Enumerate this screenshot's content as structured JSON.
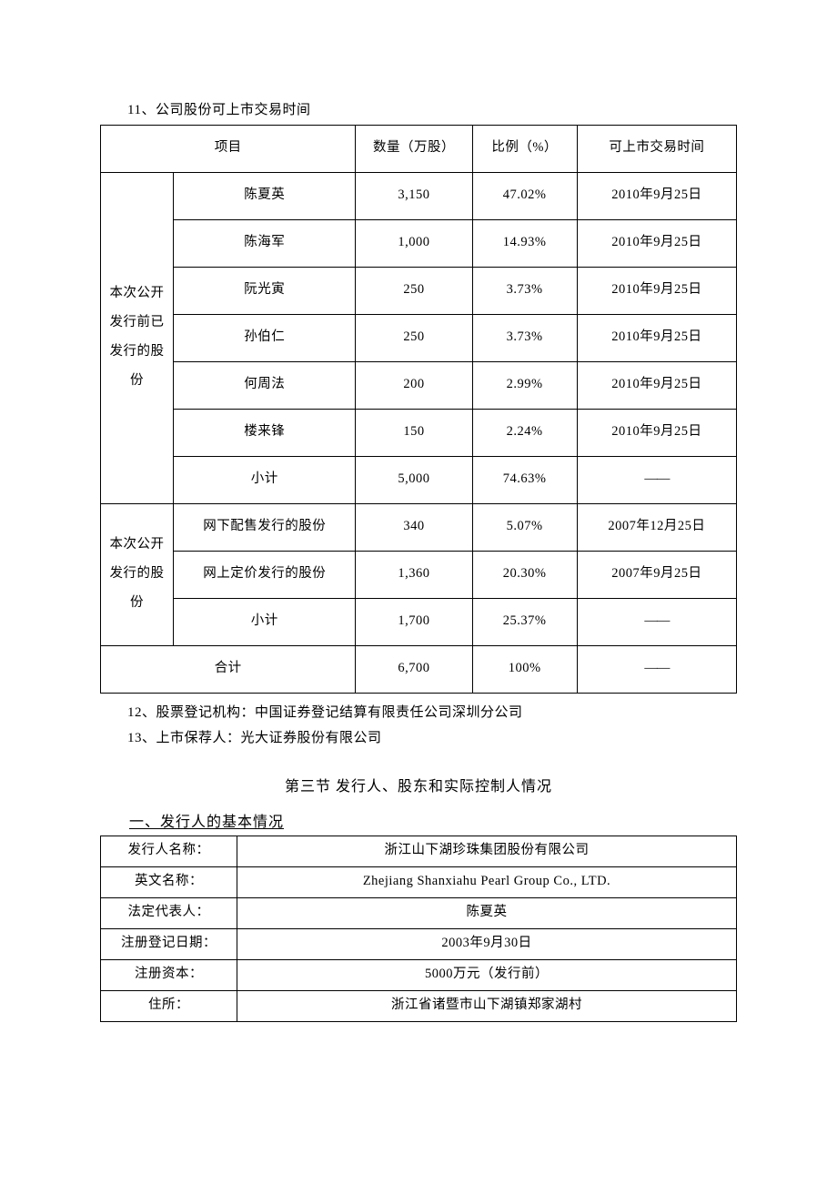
{
  "heading_11": "11、公司股份可上市交易时间",
  "table_main": {
    "columns": [
      "项目",
      "数量（万股）",
      "比例（%）",
      "可上市交易时间"
    ],
    "group1_label": "本次公开发行前已发行的股份",
    "group1_rows": [
      {
        "name": "陈夏英",
        "qty": "3,150",
        "pct": "47.02%",
        "date": "2010年9月25日"
      },
      {
        "name": "陈海军",
        "qty": "1,000",
        "pct": "14.93%",
        "date": "2010年9月25日"
      },
      {
        "name": "阮光寅",
        "qty": "250",
        "pct": "3.73%",
        "date": "2010年9月25日"
      },
      {
        "name": "孙伯仁",
        "qty": "250",
        "pct": "3.73%",
        "date": "2010年9月25日"
      },
      {
        "name": "何周法",
        "qty": "200",
        "pct": "2.99%",
        "date": "2010年9月25日"
      },
      {
        "name": "楼来锋",
        "qty": "150",
        "pct": "2.24%",
        "date": "2010年9月25日"
      },
      {
        "name": "小计",
        "qty": "5,000",
        "pct": "74.63%",
        "date": "——"
      }
    ],
    "group2_label": "本次公开发行的股份",
    "group2_rows": [
      {
        "name": "网下配售发行的股份",
        "qty": "340",
        "pct": "5.07%",
        "date": "2007年12月25日"
      },
      {
        "name": "网上定价发行的股份",
        "qty": "1,360",
        "pct": "20.30%",
        "date": "2007年9月25日"
      },
      {
        "name": "小计",
        "qty": "1,700",
        "pct": "25.37%",
        "date": "——"
      }
    ],
    "total": {
      "name": "合计",
      "qty": "6,700",
      "pct": "100%",
      "date": "——"
    }
  },
  "heading_12": "12、股票登记机构：中国证券登记结算有限责任公司深圳分公司",
  "heading_13": "13、上市保荐人：光大证券股份有限公司",
  "section_title": "第三节  发行人、股东和实际控制人情况",
  "sub_heading_1": "一、发行人的基本情况",
  "table_info": {
    "rows": [
      {
        "label": "发行人名称：",
        "value": "浙江山下湖珍珠集团股份有限公司"
      },
      {
        "label": "英文名称：",
        "value": "Zhejiang Shanxiahu Pearl Group Co., LTD."
      },
      {
        "label": "法定代表人：",
        "value": "陈夏英"
      },
      {
        "label": "注册登记日期：",
        "value": "2003年9月30日"
      },
      {
        "label": "注册资本：",
        "value": "5000万元（发行前）"
      },
      {
        "label": "住所：",
        "value": "浙江省诸暨市山下湖镇郑家湖村"
      }
    ]
  }
}
